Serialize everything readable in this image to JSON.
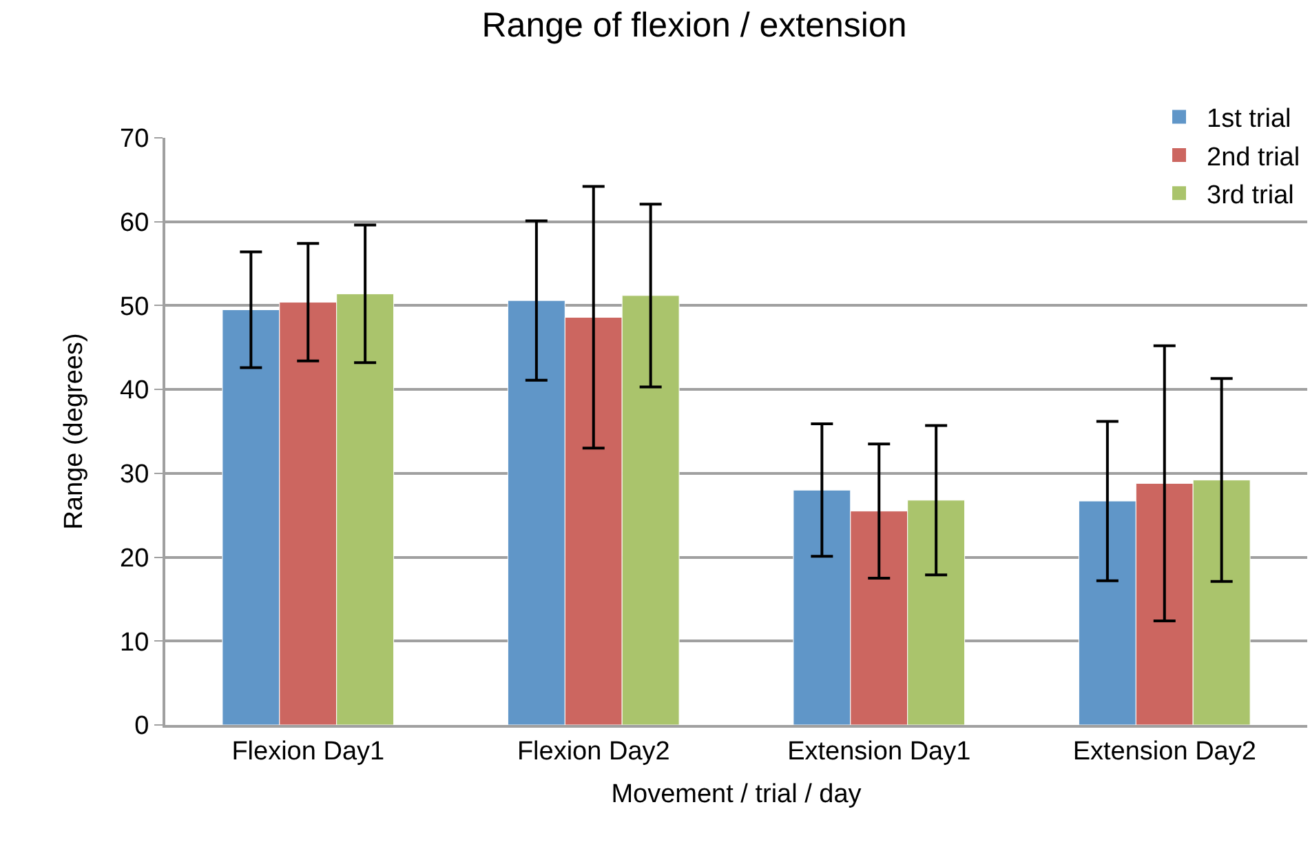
{
  "chart_data": {
    "type": "bar",
    "title": "Range of flexion / extension",
    "xlabel": "Movement / trial / day",
    "ylabel": "Range (degrees)",
    "categories": [
      "Flexion Day1",
      "Flexion Day2",
      "Extension Day1",
      "Extension Day2"
    ],
    "series": [
      {
        "name": "1st trial",
        "color": "#6096c8",
        "values": [
          49.5,
          50.6,
          28.0,
          26.7
        ],
        "errors": [
          6.9,
          9.5,
          7.9,
          9.5
        ]
      },
      {
        "name": "2nd trial",
        "color": "#cc6660",
        "values": [
          50.4,
          48.6,
          25.5,
          28.8
        ],
        "errors": [
          7.0,
          15.6,
          8.0,
          16.4
        ]
      },
      {
        "name": "3rd trial",
        "color": "#aac46c",
        "values": [
          51.4,
          51.2,
          26.8,
          29.2
        ],
        "errors": [
          8.2,
          10.9,
          8.9,
          12.1
        ]
      }
    ],
    "ylim": [
      0,
      70
    ],
    "yticks": [
      0,
      10,
      20,
      30,
      40,
      50,
      60,
      70
    ],
    "grid": "y",
    "legend": "top right"
  }
}
